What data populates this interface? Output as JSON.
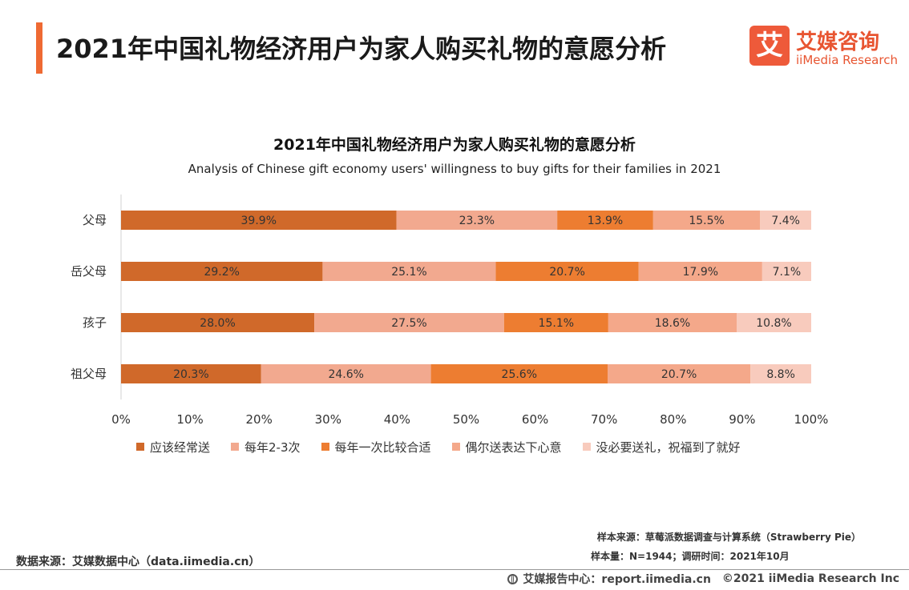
{
  "header": {
    "title": "2021年中国礼物经济用户为家人购买礼物的意愿分析",
    "logo_mark": "艾",
    "logo_cn": "艾媒咨询",
    "logo_en": "iiMedia Research"
  },
  "chart_data": {
    "type": "bar",
    "orientation": "horizontal",
    "stacked": true,
    "title": "2021年中国礼物经济用户为家人购买礼物的意愿分析",
    "subtitle": "Analysis of Chinese gift economy users' willingness to buy gifts for their families in 2021",
    "categories": [
      "父母",
      "岳父母",
      "孩子",
      "祖父母"
    ],
    "series": [
      {
        "name": "应该经常送",
        "values": [
          39.9,
          29.2,
          28.0,
          20.3
        ],
        "labels": [
          "39.9%",
          "29.2%",
          "28.0%",
          "20.3%"
        ],
        "color": "#d0692a"
      },
      {
        "name": "每年2-3次",
        "values": [
          23.3,
          25.1,
          27.5,
          24.6
        ],
        "labels": [
          "23.3%",
          "25.1%",
          "27.5%",
          "24.6%"
        ],
        "color": "#f2a98f"
      },
      {
        "name": "每年一次比较合适",
        "values": [
          13.9,
          20.7,
          15.1,
          25.6
        ],
        "labels": [
          "13.9%",
          "20.7%",
          "15.1%",
          "25.6%"
        ],
        "color": "#ed7d31"
      },
      {
        "name": "偶尔送表达下心意",
        "values": [
          15.5,
          17.9,
          18.6,
          20.7
        ],
        "labels": [
          "15.5%",
          "17.9%",
          "18.6%",
          "20.7%"
        ],
        "color": "#f4a88a"
      },
      {
        "name": "没必要送礼，祝福到了就好",
        "values": [
          7.4,
          7.1,
          10.8,
          8.8
        ],
        "labels": [
          "7.4%",
          "7.1%",
          "10.8%",
          "8.8%"
        ],
        "color": "#f8cbbd"
      }
    ],
    "xlim": [
      0,
      100
    ],
    "xticks": [
      "0%",
      "10%",
      "20%",
      "30%",
      "40%",
      "50%",
      "60%",
      "70%",
      "80%",
      "90%",
      "100%"
    ],
    "legend_position": "bottom",
    "grid": false
  },
  "footer": {
    "sample_source": "样本来源：草莓派数据调查与计算系统（Strawberry Pie）",
    "sample_size": "样本量：N=1944；调研时间：2021年10月",
    "data_source": "数据来源：艾媒数据中心（data.iimedia.cn）",
    "report_center": "艾媒报告中心：report.iimedia.cn",
    "copyright": "©2021  iiMedia Research  Inc"
  }
}
